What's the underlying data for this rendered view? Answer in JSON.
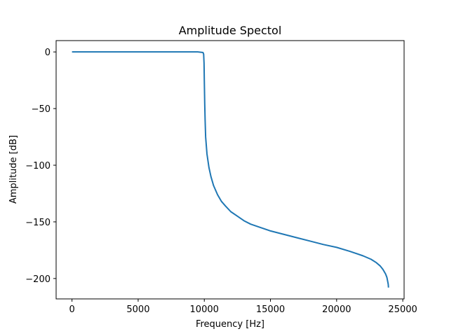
{
  "chart_data": {
    "type": "line",
    "title": "Amplitude Spectol",
    "xlabel": "Frequency [Hz]",
    "ylabel": "Amplitude [dB]",
    "xlim": [
      -1200,
      25100
    ],
    "ylim": [
      -218,
      10
    ],
    "x_ticks": [
      0,
      5000,
      10000,
      15000,
      20000,
      25000
    ],
    "x_tick_labels": [
      "0",
      "5000",
      "10000",
      "15000",
      "20000",
      "25000"
    ],
    "y_ticks": [
      0,
      -50,
      -100,
      -150,
      -200
    ],
    "y_tick_labels": [
      "0",
      "−50",
      "−100",
      "−150",
      "−200"
    ],
    "grid": false,
    "series": [
      {
        "color": "#1f77b4",
        "x": [
          0,
          2000,
          4000,
          6000,
          8000,
          9500,
          9900,
          9950,
          9980,
          10000,
          10030,
          10060,
          10100,
          10200,
          10350,
          10500,
          10700,
          11000,
          11300,
          11600,
          12000,
          12500,
          13000,
          13500,
          14000,
          15000,
          16000,
          17000,
          18000,
          19000,
          20000,
          21000,
          22000,
          22600,
          23000,
          23300,
          23500,
          23700,
          23800,
          23850,
          23900,
          23920
        ],
        "y": [
          0,
          0,
          0,
          0,
          0,
          0,
          -0.5,
          -2,
          -10,
          -25,
          -45,
          -60,
          -75,
          -90,
          -102,
          -110,
          -118,
          -126,
          -132,
          -136,
          -141,
          -145,
          -149,
          -152,
          -154,
          -158,
          -161,
          -164,
          -167,
          -170,
          -172.5,
          -176,
          -180,
          -183,
          -186,
          -189,
          -192,
          -196,
          -199,
          -202,
          -205,
          -208
        ]
      }
    ]
  }
}
